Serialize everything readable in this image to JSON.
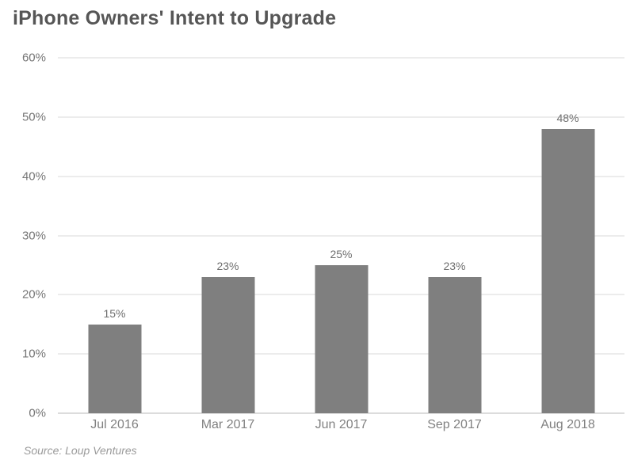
{
  "chart_data": {
    "type": "bar",
    "title": "iPhone Owners' Intent to Upgrade",
    "categories": [
      "Jul 2016",
      "Mar 2017",
      "Jun 2017",
      "Sep 2017",
      "Aug 2018"
    ],
    "values": [
      15,
      23,
      25,
      23,
      48
    ],
    "value_labels": [
      "15%",
      "23%",
      "25%",
      "23%",
      "48%"
    ],
    "ylabel": "",
    "xlabel": "",
    "ylim": [
      0,
      60
    ],
    "ytick_interval": 10,
    "ytick_labels": [
      "0%",
      "10%",
      "20%",
      "30%",
      "40%",
      "50%",
      "60%"
    ],
    "grid": true,
    "legend": false,
    "bar_color": "#7f7f7f",
    "gridline_color": "#d9d9d9",
    "axis_line_color": "#b9b9b9"
  },
  "source_note": "Source: Loup Ventures",
  "colors": {
    "title": "#565656",
    "value_label": "#6e6e6e",
    "y_tick_label": "#757575",
    "x_tick_label": "#818181",
    "source": "#9a9a9a",
    "background": "#ffffff"
  }
}
